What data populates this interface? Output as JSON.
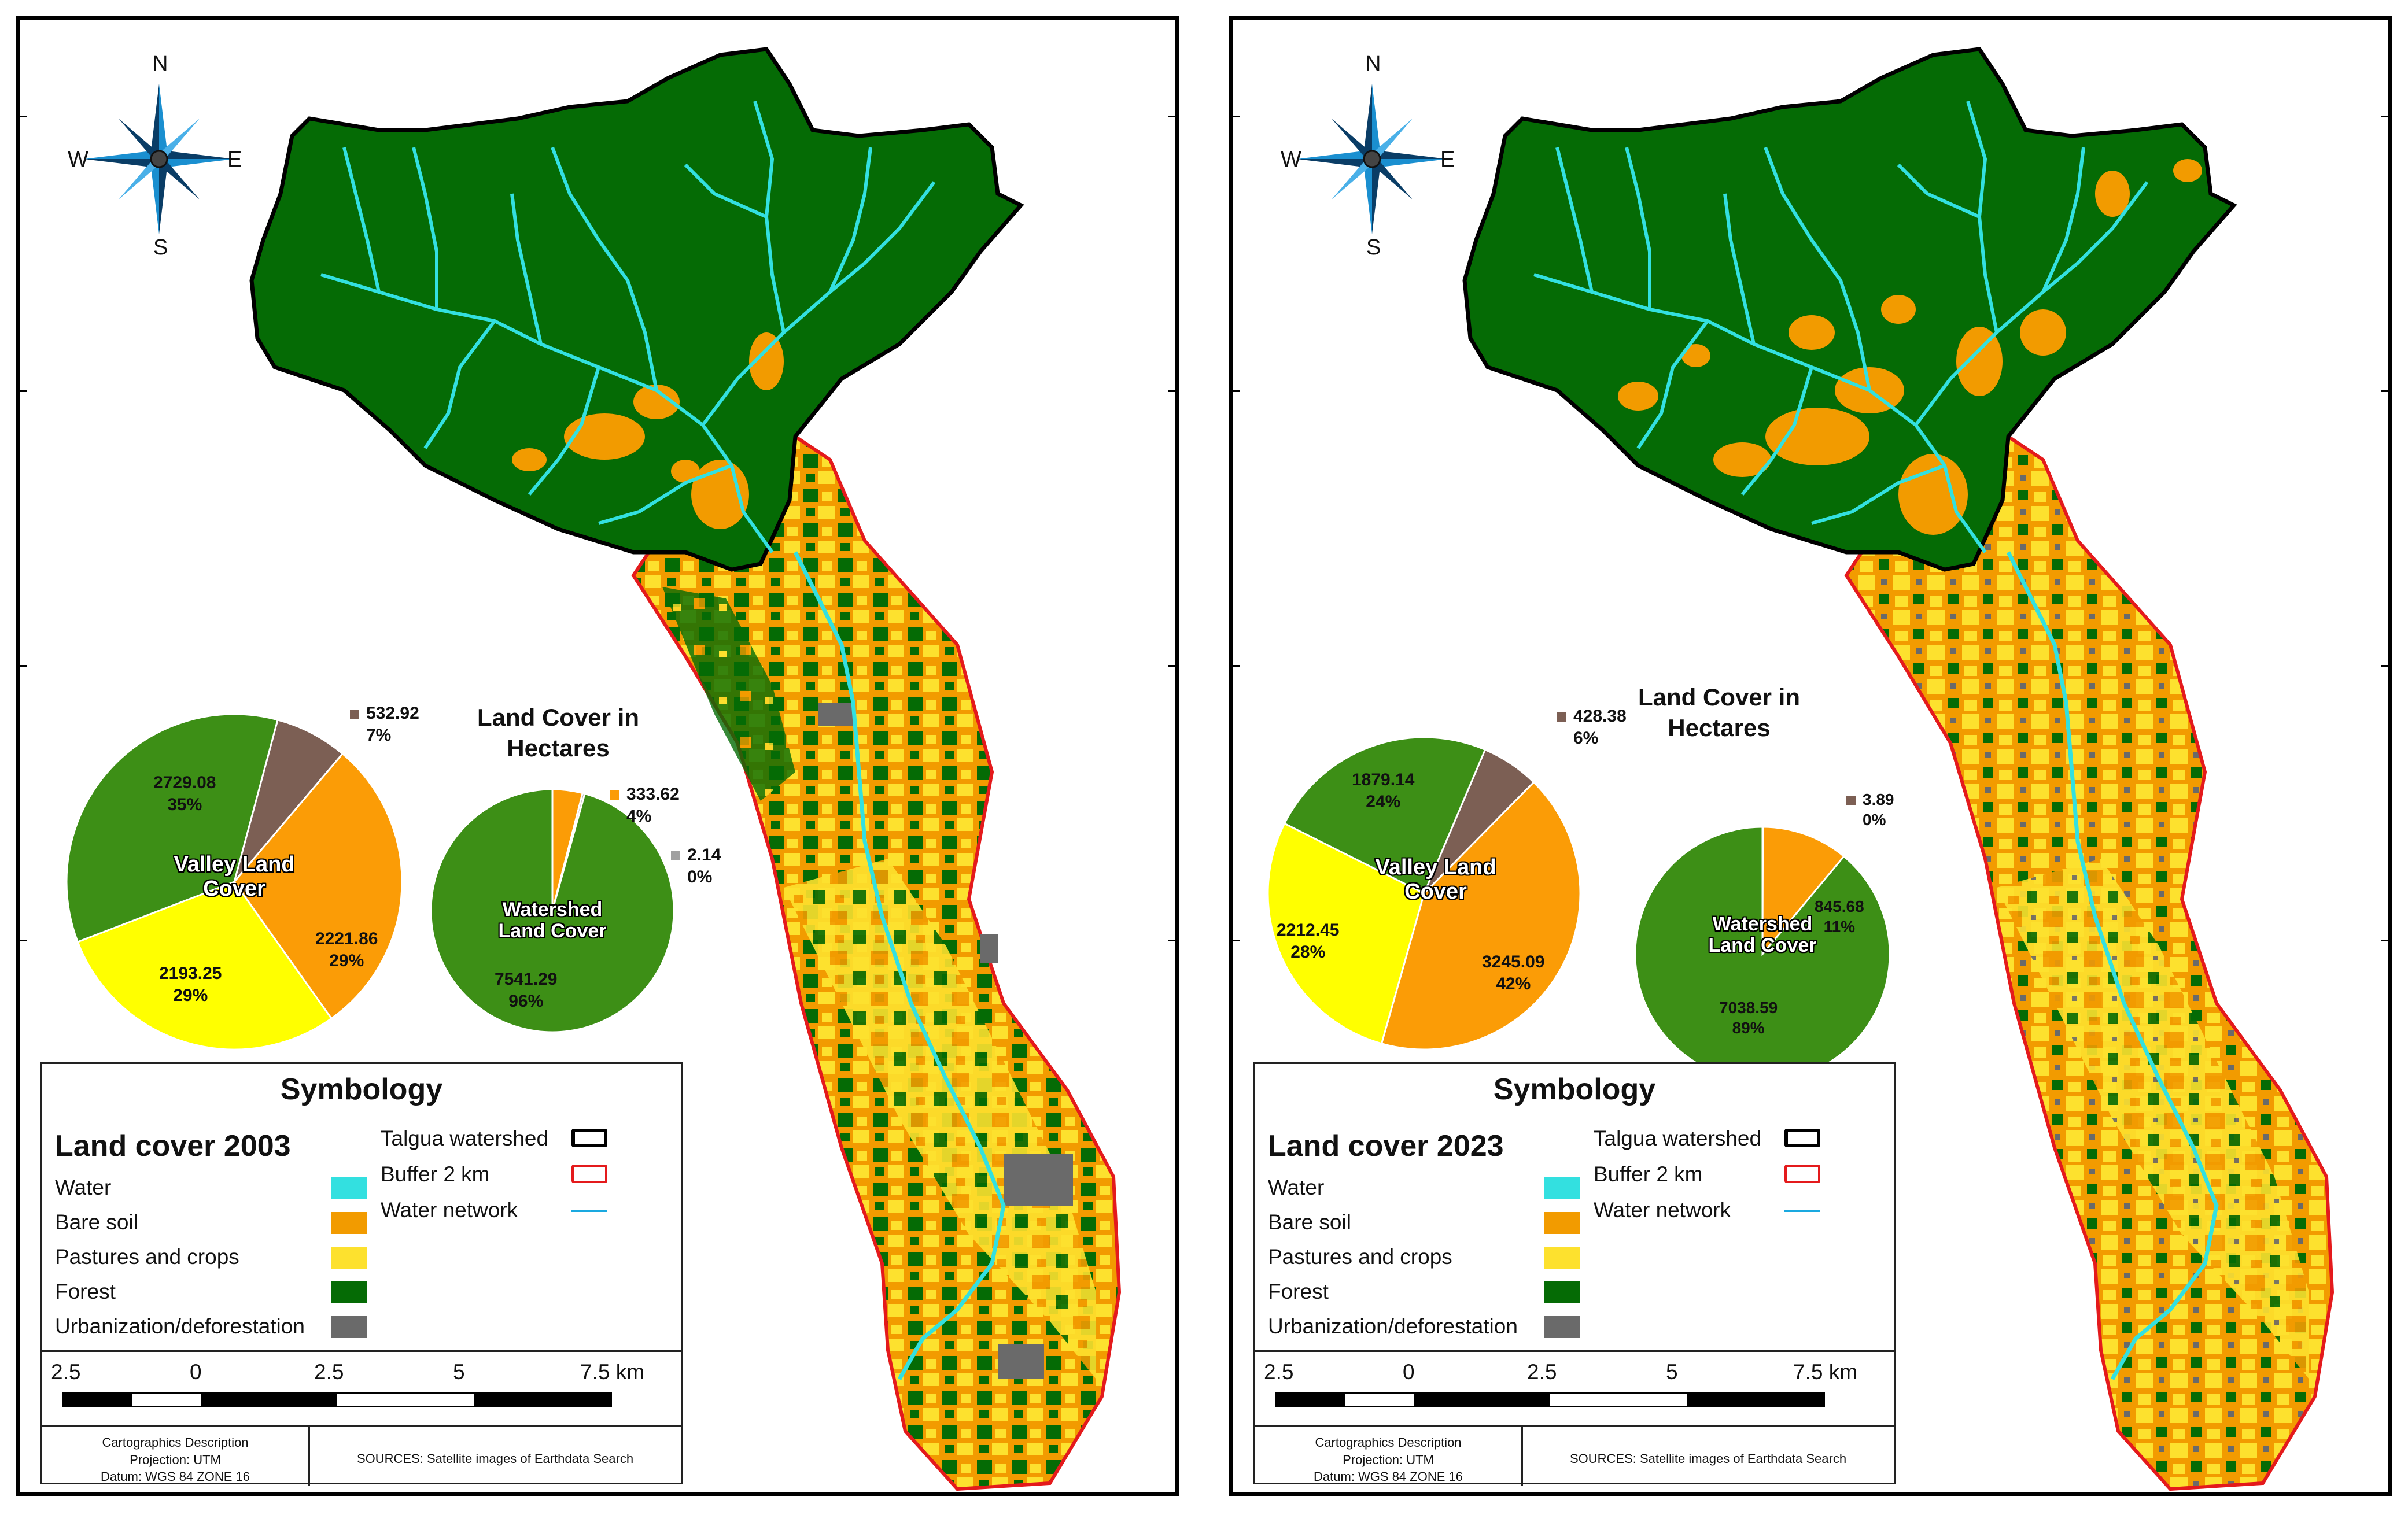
{
  "colors": {
    "water": "#33e0e0",
    "bare_soil": "#f29b00",
    "pastures": "#fde12e",
    "forest": "#056b05",
    "urban": "#6a6a6a",
    "watershed_border": "#000000",
    "buffer_border": "#e41a1c",
    "pie_forest": "#3d8f16",
    "pie_bare": "#fb9c06",
    "pie_pasture": "#ffff00",
    "pie_urban": "#7c5f54",
    "pie_gray": "#a0a0a0"
  },
  "panels": [
    {
      "compass": {
        "n": "N",
        "s": "S",
        "e": "E",
        "w": "W",
        "icon": "compass-rose-icon"
      },
      "heading": {
        "line1": "Land Cover in",
        "line2": "Hectares"
      },
      "valley_pie": {
        "title_line1": "Valley Land",
        "title_line2": "Cover",
        "slices": [
          {
            "value": "532.92",
            "pct": "7%",
            "fraction": 0.07,
            "color": "pie_urban"
          },
          {
            "value": "2221.86",
            "pct": "29%",
            "fraction": 0.29,
            "color": "pie_bare"
          },
          {
            "value": "2193.25",
            "pct": "29%",
            "fraction": 0.29,
            "color": "pie_pasture"
          },
          {
            "value": "2729.08",
            "pct": "35%",
            "fraction": 0.35,
            "color": "pie_forest"
          }
        ]
      },
      "watershed_pie": {
        "title_line1": "Watershed",
        "title_line2": "Land Cover",
        "slices": [
          {
            "value": "333.62",
            "pct": "4%",
            "fraction": 0.04,
            "color": "pie_bare"
          },
          {
            "value": "2.14",
            "pct": "0%",
            "fraction": 0.003,
            "color": "pie_gray"
          },
          {
            "value": "7541.29",
            "pct": "96%",
            "fraction": 0.957,
            "color": "pie_forest"
          }
        ]
      },
      "legend": {
        "title": "Symbology",
        "land_cover_title": "Land cover 2003",
        "items": [
          "Water",
          "Bare soil",
          "Pastures and crops",
          "Forest",
          "Urbanization/deforestation"
        ],
        "right_items": [
          "Talgua watershed",
          "Buffer 2 km",
          "Water network"
        ],
        "scale": [
          "2.5",
          "0",
          "2.5",
          "5",
          "7.5 km"
        ],
        "carto_line1": "Cartographics Description",
        "carto_line2": "Projection: UTM",
        "carto_line3": "Datum:  WGS 84 ZONE 16",
        "sources": "SOURCES: Satellite images of Earthdata Search"
      }
    },
    {
      "compass": {
        "n": "N",
        "s": "S",
        "e": "E",
        "w": "W",
        "icon": "compass-rose-icon"
      },
      "heading": {
        "line1": "Land Cover in",
        "line2": "Hectares"
      },
      "valley_pie": {
        "title_line1": "Valley Land",
        "title_line2": "Cover",
        "slices": [
          {
            "value": "428.38",
            "pct": "6%",
            "fraction": 0.06,
            "color": "pie_urban"
          },
          {
            "value": "3245.09",
            "pct": "42%",
            "fraction": 0.42,
            "color": "pie_bare"
          },
          {
            "value": "2212.45",
            "pct": "28%",
            "fraction": 0.28,
            "color": "pie_pasture"
          },
          {
            "value": "1879.14",
            "pct": "24%",
            "fraction": 0.24,
            "color": "pie_forest"
          }
        ]
      },
      "watershed_pie": {
        "title_line1": "Watershed",
        "title_line2": "Land Cover",
        "slices": [
          {
            "value": "3.89",
            "pct": "0%",
            "fraction": 0.0005,
            "color": "pie_urban"
          },
          {
            "value": "845.68",
            "pct": "11%",
            "fraction": 0.11,
            "color": "pie_bare"
          },
          {
            "value": "7038.59",
            "pct": "89%",
            "fraction": 0.8895,
            "color": "pie_forest"
          }
        ]
      },
      "legend": {
        "title": "Symbology",
        "land_cover_title": "Land cover 2023",
        "items": [
          "Water",
          "Bare soil",
          "Pastures and crops",
          "Forest",
          "Urbanization/deforestation"
        ],
        "right_items": [
          "Talgua watershed",
          "Buffer 2 km",
          "Water network"
        ],
        "scale": [
          "2.5",
          "0",
          "2.5",
          "5",
          "7.5 km"
        ],
        "carto_line1": "Cartographics Description",
        "carto_line2": "Projection: UTM",
        "carto_line3": "Datum:  WGS 84 ZONE 16",
        "sources": "SOURCES: Satellite images of Earthdata Search"
      }
    }
  ]
}
